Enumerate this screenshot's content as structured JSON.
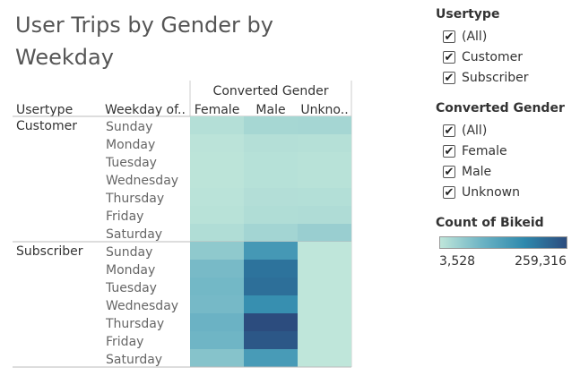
{
  "title": "User Trips by Gender by Weekday",
  "colors": {
    "low": "#bfe6da",
    "high": "#2c4c7e"
  },
  "filters": {
    "usertype": {
      "title": "Usertype",
      "items": [
        {
          "label": "(All)",
          "checked": true
        },
        {
          "label": "Customer",
          "checked": true
        },
        {
          "label": "Subscriber",
          "checked": true
        }
      ]
    },
    "gender": {
      "title": "Converted Gender",
      "items": [
        {
          "label": "(All)",
          "checked": true
        },
        {
          "label": "Female",
          "checked": true
        },
        {
          "label": "Male",
          "checked": true
        },
        {
          "label": "Unknown",
          "checked": true
        }
      ]
    }
  },
  "color_legend": {
    "title": "Count of Bikeid",
    "min_label": "3,528",
    "max_label": "259,316"
  },
  "chart_data": {
    "type": "heatmap",
    "title": "User Trips by Gender by Weekday",
    "column_group_header": "Converted Gender",
    "row_header_1": "Usertype",
    "row_header_2": "Weekday of..",
    "columns": [
      "Female",
      "Male",
      "Unkno.."
    ],
    "value_range": [
      3528,
      259316
    ],
    "groups": [
      {
        "name": "Customer",
        "rows": [
          {
            "day": "Sunday",
            "values": [
              15000,
              30000,
              32000
            ]
          },
          {
            "day": "Monday",
            "values": [
              8000,
              15000,
              14000
            ]
          },
          {
            "day": "Tuesday",
            "values": [
              7000,
              13000,
              11000
            ]
          },
          {
            "day": "Wednesday",
            "values": [
              7000,
              13000,
              11000
            ]
          },
          {
            "day": "Thursday",
            "values": [
              9000,
              17000,
              16000
            ]
          },
          {
            "day": "Friday",
            "values": [
              11000,
              20000,
              21000
            ]
          },
          {
            "day": "Saturday",
            "values": [
              20000,
              34000,
              45000
            ]
          }
        ]
      },
      {
        "name": "Subscriber",
        "rows": [
          {
            "day": "Sunday",
            "values": [
              55000,
              150000,
              3528
            ]
          },
          {
            "day": "Monday",
            "values": [
              80000,
              210000,
              3600
            ]
          },
          {
            "day": "Tuesday",
            "values": [
              85000,
              215000,
              3600
            ]
          },
          {
            "day": "Wednesday",
            "values": [
              82000,
              170000,
              3600
            ]
          },
          {
            "day": "Thursday",
            "values": [
              95000,
              259316,
              3600
            ]
          },
          {
            "day": "Friday",
            "values": [
              90000,
              245000,
              3600
            ]
          },
          {
            "day": "Saturday",
            "values": [
              65000,
              145000,
              3600
            ]
          }
        ]
      }
    ]
  }
}
